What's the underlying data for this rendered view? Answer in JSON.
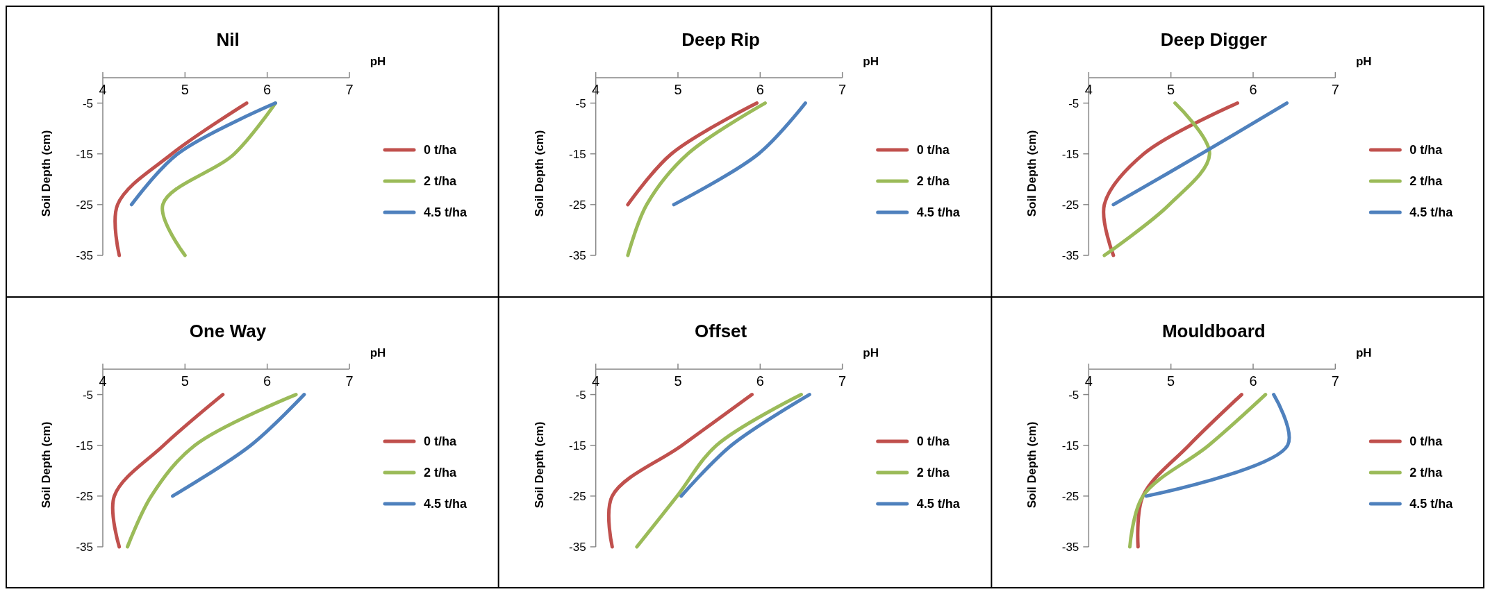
{
  "chart_data": [
    {
      "type": "line",
      "title": "Nil",
      "xlabel": "pH",
      "ylabel": "Soil Depth (cm)",
      "xlim": [
        4,
        7
      ],
      "xticks": [
        4,
        5,
        6,
        7
      ],
      "ylim": [
        -35,
        0
      ],
      "yticks": [
        -5,
        -15,
        -25,
        -35
      ],
      "legend": "right",
      "grid": false,
      "marker": "none",
      "line_style": "solid",
      "series": [
        {
          "name": "0 t/ha",
          "color": "#c0504d",
          "x": [
            5.75,
            4.84,
            4.18,
            4.2
          ],
          "values": [
            -5,
            -15,
            -25,
            -35
          ]
        },
        {
          "name": "2 t/ha",
          "color": "#9bbb59",
          "x": [
            6.1,
            5.6,
            4.73,
            5.0
          ],
          "values": [
            -5,
            -15,
            -25,
            -35
          ]
        },
        {
          "name": "4.5 t/ha",
          "color": "#4f81bd",
          "x": [
            6.1,
            4.91,
            4.35
          ],
          "values": [
            -5,
            -15,
            -25
          ]
        }
      ]
    },
    {
      "type": "line",
      "title": "Deep Rip",
      "xlabel": "pH",
      "ylabel": "Soil Depth (cm)",
      "xlim": [
        4,
        7
      ],
      "xticks": [
        4,
        5,
        6,
        7
      ],
      "ylim": [
        -35,
        0
      ],
      "yticks": [
        -5,
        -15,
        -25,
        -35
      ],
      "legend": "right",
      "grid": false,
      "marker": "none",
      "line_style": "solid",
      "series": [
        {
          "name": "0 t/ha",
          "color": "#c0504d",
          "x": [
            5.96,
            4.92,
            4.39
          ],
          "values": [
            -5,
            -15,
            -25
          ]
        },
        {
          "name": "2 t/ha",
          "color": "#9bbb59",
          "x": [
            6.06,
            5.12,
            4.62,
            4.39
          ],
          "values": [
            -5,
            -15,
            -25,
            -35
          ]
        },
        {
          "name": "4.5 t/ha",
          "color": "#4f81bd",
          "x": [
            6.55,
            5.98,
            4.95
          ],
          "values": [
            -5,
            -15,
            -25
          ]
        }
      ]
    },
    {
      "type": "line",
      "title": "Deep Digger",
      "xlabel": "pH",
      "ylabel": "Soil Depth (cm)",
      "xlim": [
        4,
        7
      ],
      "xticks": [
        4,
        5,
        6,
        7
      ],
      "ylim": [
        -35,
        0
      ],
      "yticks": [
        -5,
        -15,
        -25,
        -35
      ],
      "legend": "right",
      "grid": false,
      "marker": "none",
      "line_style": "solid",
      "series": [
        {
          "name": "0 t/ha",
          "color": "#c0504d",
          "x": [
            5.81,
            4.67,
            4.19,
            4.3
          ],
          "values": [
            -5,
            -15,
            -25,
            -35
          ]
        },
        {
          "name": "2 t/ha",
          "color": "#9bbb59",
          "x": [
            5.05,
            5.47,
            4.98,
            4.19
          ],
          "values": [
            -5,
            -15,
            -25,
            -35
          ]
        },
        {
          "name": "4.5 t/ha",
          "color": "#4f81bd",
          "x": [
            6.41,
            5.37,
            4.3
          ],
          "values": [
            -5,
            -15,
            -25
          ]
        }
      ]
    },
    {
      "type": "line",
      "title": "One Way",
      "xlabel": "pH",
      "ylabel": "Soil Depth (cm)",
      "xlim": [
        4,
        7
      ],
      "xticks": [
        4,
        5,
        6,
        7
      ],
      "ylim": [
        -35,
        0
      ],
      "yticks": [
        -5,
        -15,
        -25,
        -35
      ],
      "legend": "right",
      "grid": false,
      "marker": "none",
      "line_style": "solid",
      "series": [
        {
          "name": "0 t/ha",
          "color": "#c0504d",
          "x": [
            5.46,
            4.74,
            4.14,
            4.2
          ],
          "values": [
            -5,
            -15,
            -25,
            -35
          ]
        },
        {
          "name": "2 t/ha",
          "color": "#9bbb59",
          "x": [
            6.35,
            5.12,
            4.59,
            4.3
          ],
          "values": [
            -5,
            -15,
            -25,
            -35
          ]
        },
        {
          "name": "4.5 t/ha",
          "color": "#4f81bd",
          "x": [
            6.45,
            5.8,
            4.85
          ],
          "values": [
            -5,
            -15,
            -25
          ]
        }
      ]
    },
    {
      "type": "line",
      "title": "Offset",
      "xlabel": "pH",
      "ylabel": "Soil Depth (cm)",
      "xlim": [
        4,
        7
      ],
      "xticks": [
        4,
        5,
        6,
        7
      ],
      "ylim": [
        -35,
        0
      ],
      "yticks": [
        -5,
        -15,
        -25,
        -35
      ],
      "legend": "right",
      "grid": false,
      "marker": "none",
      "line_style": "solid",
      "series": [
        {
          "name": "0 t/ha",
          "color": "#c0504d",
          "x": [
            5.9,
            5.05,
            4.2,
            4.2
          ],
          "values": [
            -5,
            -15,
            -25,
            -35
          ]
        },
        {
          "name": "2 t/ha",
          "color": "#9bbb59",
          "x": [
            6.5,
            5.47,
            4.99,
            4.5
          ],
          "values": [
            -5,
            -15,
            -25,
            -35
          ]
        },
        {
          "name": "4.5 t/ha",
          "color": "#4f81bd",
          "x": [
            6.6,
            5.65,
            5.04
          ],
          "values": [
            -5,
            -15,
            -25
          ]
        }
      ]
    },
    {
      "type": "line",
      "title": "Mouldboard",
      "xlabel": "pH",
      "ylabel": "Soil Depth (cm)",
      "xlim": [
        4,
        7
      ],
      "xticks": [
        4,
        5,
        6,
        7
      ],
      "ylim": [
        -35,
        0
      ],
      "yticks": [
        -5,
        -15,
        -25,
        -35
      ],
      "legend": "right",
      "grid": false,
      "marker": "none",
      "line_style": "solid",
      "series": [
        {
          "name": "0 t/ha",
          "color": "#c0504d",
          "x": [
            5.86,
            5.22,
            4.66,
            4.6
          ],
          "values": [
            -5,
            -15,
            -25,
            -35
          ]
        },
        {
          "name": "2 t/ha",
          "color": "#9bbb59",
          "x": [
            6.15,
            5.46,
            4.66,
            4.5
          ],
          "values": [
            -5,
            -15,
            -25,
            -35
          ]
        },
        {
          "name": "4.5 t/ha",
          "color": "#4f81bd",
          "x": [
            6.25,
            6.42,
            4.7
          ],
          "values": [
            -5,
            -15,
            -25
          ]
        }
      ]
    }
  ]
}
